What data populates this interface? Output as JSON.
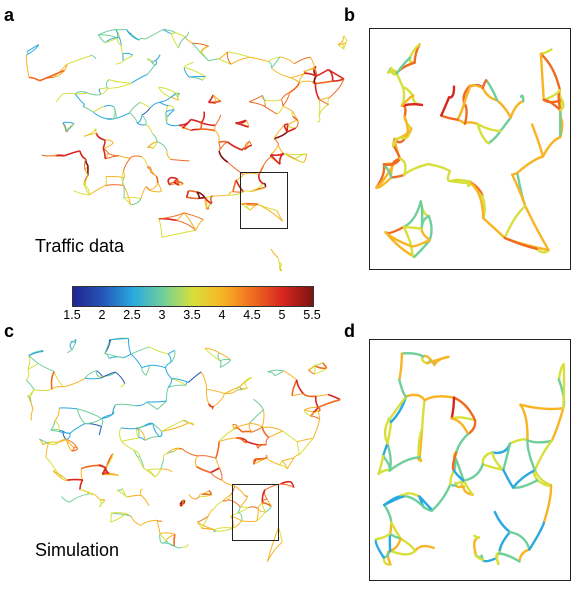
{
  "figure": {
    "panels": {
      "a": {
        "letter": "a",
        "label": "Traffic data"
      },
      "b": {
        "letter": "b"
      },
      "c": {
        "letter": "c",
        "label": "Simulation"
      },
      "d": {
        "letter": "d"
      }
    },
    "colorbar": {
      "min": 1.5,
      "max": 5.5,
      "ticks": [
        "1.5",
        "2",
        "2.5",
        "3",
        "3.5",
        "4",
        "4.5",
        "5",
        "5.5"
      ],
      "colormap": [
        "#22248f",
        "#2456b8",
        "#29a9e0",
        "#6fcf9a",
        "#d7e03a",
        "#f8b423",
        "#f06b21",
        "#d7261f",
        "#7d1310"
      ]
    },
    "colors": {
      "frame": "#222222",
      "road_low": "#2a7fd4",
      "road_mid": "#f6c12b",
      "road_high": "#c8221c"
    }
  }
}
